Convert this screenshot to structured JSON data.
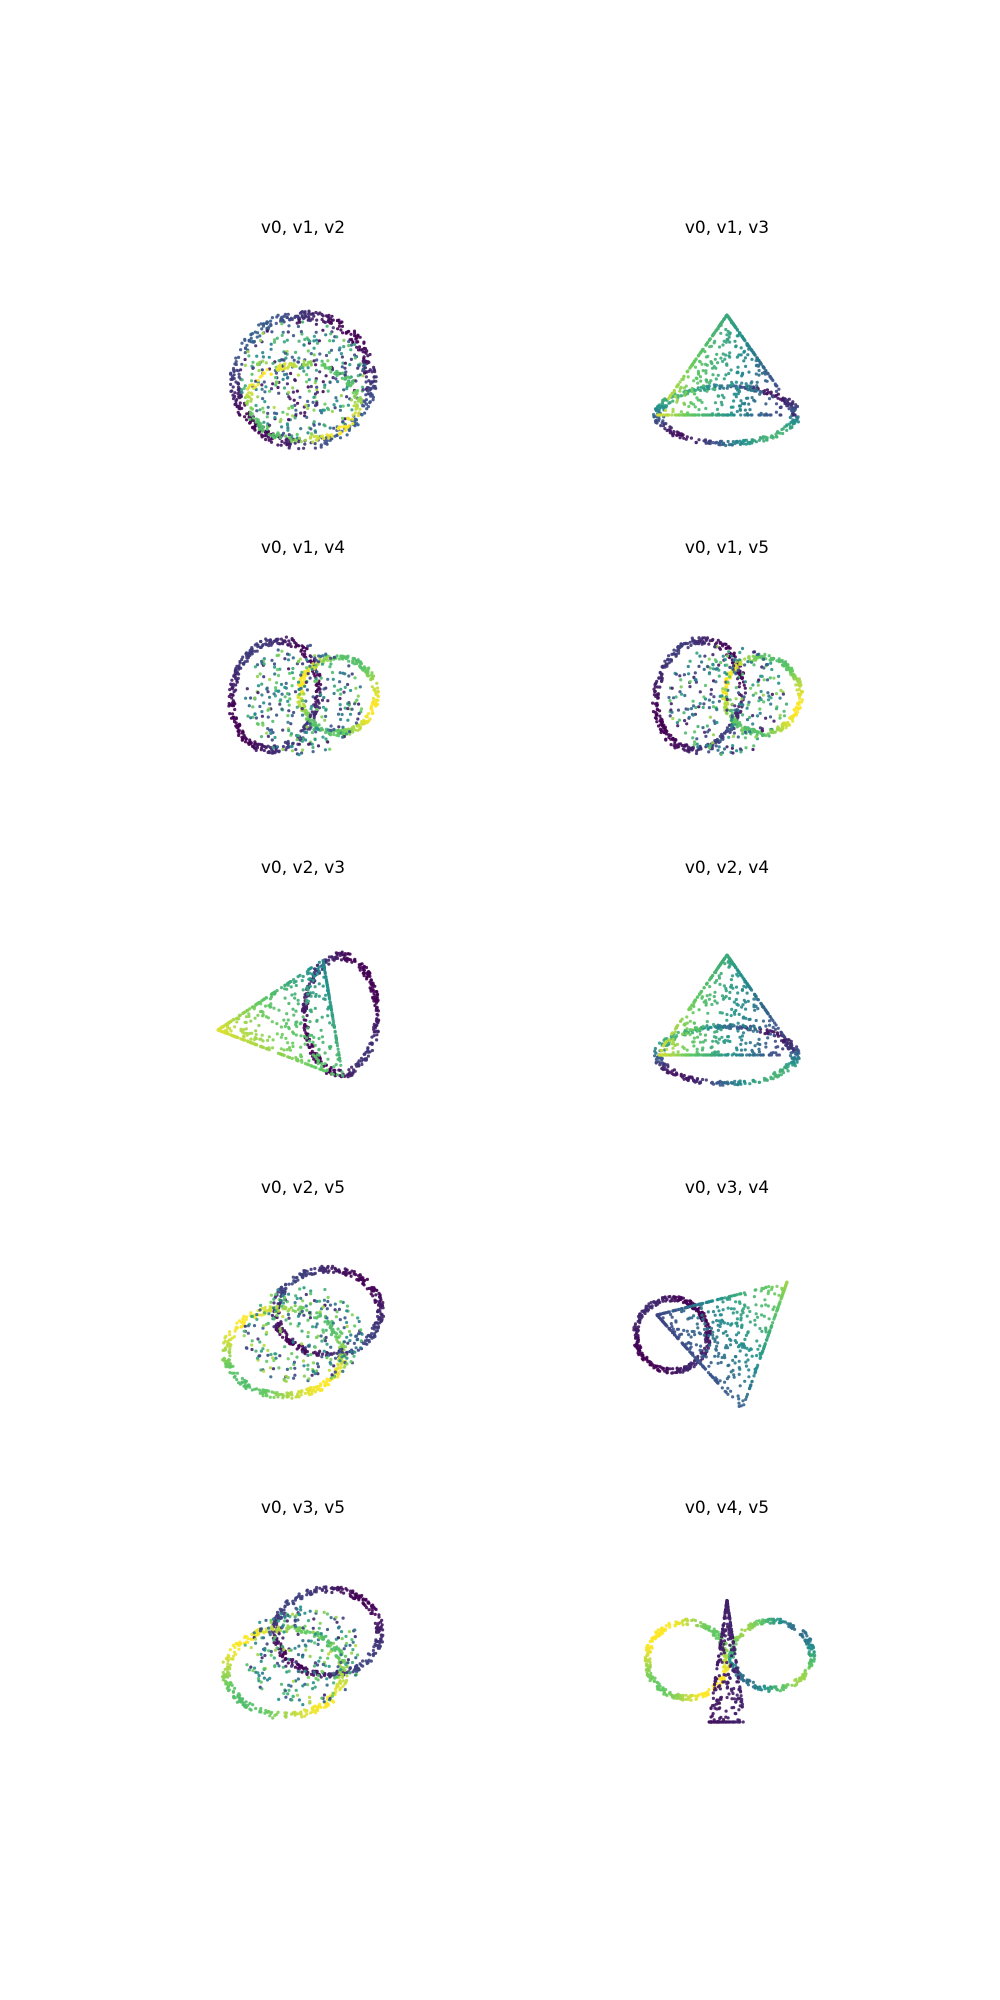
{
  "chart_data": [
    {
      "type": "scatter",
      "projection": "3d",
      "title": "v0, v1, v2",
      "axes": [
        "v0",
        "v1",
        "v2"
      ],
      "axis_visible": false,
      "colormap": "viridis",
      "shape": "rounded-dome"
    },
    {
      "type": "scatter",
      "projection": "3d",
      "title": "v0, v1, v3",
      "axes": [
        "v0",
        "v1",
        "v3"
      ],
      "axis_visible": false,
      "colormap": "viridis",
      "shape": "cone"
    },
    {
      "type": "scatter",
      "projection": "3d",
      "title": "v0, v1, v4",
      "axes": [
        "v0",
        "v1",
        "v4"
      ],
      "axis_visible": false,
      "colormap": "viridis",
      "shape": "twisted-lobes"
    },
    {
      "type": "scatter",
      "projection": "3d",
      "title": "v0, v1, v5",
      "axes": [
        "v0",
        "v1",
        "v5"
      ],
      "axis_visible": false,
      "colormap": "viridis",
      "shape": "twisted-lobes"
    },
    {
      "type": "scatter",
      "projection": "3d",
      "title": "v0, v2, v3",
      "axes": [
        "v0",
        "v2",
        "v3"
      ],
      "axis_visible": false,
      "colormap": "viridis",
      "shape": "wedge"
    },
    {
      "type": "scatter",
      "projection": "3d",
      "title": "v0, v2, v4",
      "axes": [
        "v0",
        "v2",
        "v4"
      ],
      "axis_visible": false,
      "colormap": "viridis",
      "shape": "cone"
    },
    {
      "type": "scatter",
      "projection": "3d",
      "title": "v0, v2, v5",
      "axes": [
        "v0",
        "v2",
        "v5"
      ],
      "axis_visible": false,
      "colormap": "viridis",
      "shape": "two-ovals"
    },
    {
      "type": "scatter",
      "projection": "3d",
      "title": "v0, v3, v4",
      "axes": [
        "v0",
        "v3",
        "v4"
      ],
      "axis_visible": false,
      "colormap": "viridis",
      "shape": "funnel"
    },
    {
      "type": "scatter",
      "projection": "3d",
      "title": "v0, v3, v5",
      "axes": [
        "v0",
        "v3",
        "v5"
      ],
      "axis_visible": false,
      "colormap": "viridis",
      "shape": "two-ovals"
    },
    {
      "type": "scatter",
      "projection": "3d",
      "title": "v0, v4, v5",
      "axes": [
        "v0",
        "v4",
        "v5"
      ],
      "axis_visible": false,
      "colormap": "viridis",
      "shape": "bowtie"
    }
  ],
  "colors": {
    "viridis_low": "#440154",
    "viridis_mid_low": "#3b528b",
    "viridis_mid": "#21918c",
    "viridis_mid_high": "#5ec962",
    "viridis_high": "#fde725",
    "background": "#ffffff"
  }
}
